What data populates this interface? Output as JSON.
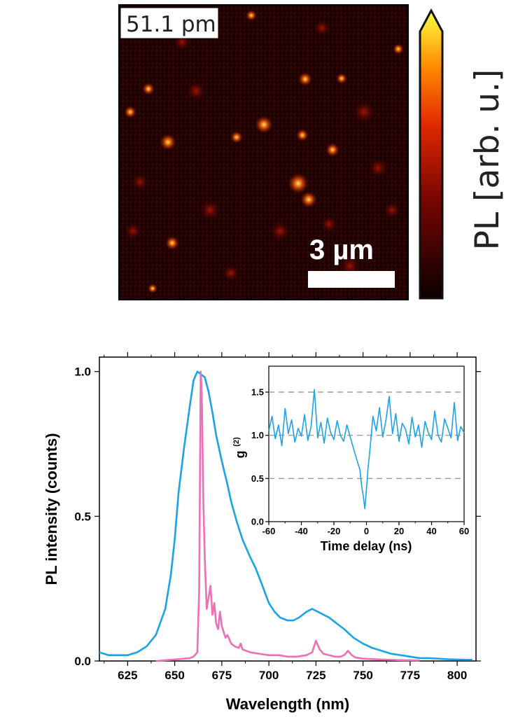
{
  "map": {
    "label": "51.1 pm",
    "scale_bar_label": "3 µm",
    "colorbar_label": "PL [arb. u.]",
    "colors": {
      "low": "#1a0000",
      "mid": "#cc2200",
      "high": "#ffff33"
    }
  },
  "chart_data": [
    {
      "type": "line",
      "xlabel": "Wavelength (nm)",
      "ylabel": "PL intensity (counts)",
      "xlim": [
        610,
        810
      ],
      "ylim": [
        0,
        1.05
      ],
      "xticks": [
        625,
        650,
        675,
        700,
        725,
        750,
        775,
        800
      ],
      "yticks": [
        0.0,
        0.5,
        1.0
      ],
      "ytick_labels": [
        "0.0",
        "0.5",
        "1.0"
      ],
      "grid": false,
      "series": [
        {
          "color": "#1aa3e8",
          "x": [
            610,
            615,
            620,
            625,
            630,
            635,
            640,
            645,
            648,
            650,
            652,
            655,
            658,
            660,
            662,
            664,
            666,
            668,
            670,
            672,
            675,
            678,
            680,
            683,
            686,
            690,
            693,
            696,
            700,
            703,
            706,
            710,
            713,
            716,
            720,
            723,
            726,
            729,
            732,
            736,
            740,
            745,
            750,
            755,
            760,
            765,
            770,
            775,
            780,
            785,
            790,
            795,
            800,
            805,
            808
          ],
          "y": [
            0.03,
            0.02,
            0.02,
            0.02,
            0.03,
            0.05,
            0.09,
            0.18,
            0.3,
            0.42,
            0.58,
            0.74,
            0.88,
            0.97,
            1.0,
            0.99,
            0.98,
            0.93,
            0.86,
            0.78,
            0.69,
            0.61,
            0.55,
            0.48,
            0.42,
            0.36,
            0.32,
            0.27,
            0.2,
            0.17,
            0.15,
            0.14,
            0.14,
            0.15,
            0.17,
            0.18,
            0.17,
            0.16,
            0.15,
            0.13,
            0.11,
            0.08,
            0.06,
            0.045,
            0.035,
            0.025,
            0.02,
            0.015,
            0.01,
            0.01,
            0.008,
            0.006,
            0.005,
            0.004,
            0.004
          ]
        },
        {
          "color": "#f06eb4",
          "x": [
            640,
            650,
            655,
            658,
            660,
            662,
            663,
            663.8,
            664.4,
            665.2,
            666,
            667,
            668,
            669,
            670,
            671,
            672,
            673,
            674,
            675,
            676,
            677,
            678,
            680,
            682,
            684,
            685,
            686,
            688,
            690,
            695,
            700,
            705,
            710,
            715,
            720,
            723,
            725,
            727,
            729,
            732,
            735,
            738,
            740,
            742,
            744,
            746,
            750,
            760,
            770,
            780
          ],
          "y": [
            0.0,
            0.005,
            0.008,
            0.01,
            0.015,
            0.03,
            0.25,
            1.0,
            0.92,
            0.55,
            0.35,
            0.18,
            0.22,
            0.26,
            0.16,
            0.2,
            0.13,
            0.11,
            0.17,
            0.12,
            0.1,
            0.08,
            0.09,
            0.06,
            0.05,
            0.045,
            0.06,
            0.04,
            0.035,
            0.03,
            0.025,
            0.02,
            0.02,
            0.015,
            0.015,
            0.02,
            0.03,
            0.07,
            0.04,
            0.025,
            0.02,
            0.015,
            0.015,
            0.02,
            0.035,
            0.02,
            0.012,
            0.008,
            0.005,
            0.003,
            0.002
          ]
        }
      ]
    },
    {
      "type": "line",
      "xlabel": "Time delay (ns)",
      "ylabel": "g",
      "ylabel_sup": "(2)",
      "xlim": [
        -60,
        60
      ],
      "ylim": [
        0,
        1.8
      ],
      "xticks": [
        -60,
        -40,
        -20,
        0,
        20,
        40,
        60
      ],
      "yticks": [
        0.0,
        0.5,
        1.0,
        1.5
      ],
      "ytick_labels": [
        "0.0",
        "0.5",
        "1.0",
        "1.5"
      ],
      "reference_lines": [
        0.5,
        1.0,
        1.5
      ],
      "series": [
        {
          "color": "#1aa3e8",
          "x": [
            -60,
            -58,
            -56,
            -54,
            -52,
            -50,
            -48,
            -46,
            -44,
            -42,
            -40,
            -38,
            -36,
            -34,
            -32,
            -30,
            -28,
            -26,
            -24,
            -22,
            -20,
            -18,
            -16,
            -14,
            -12,
            -10,
            -8,
            -6,
            -4,
            -3,
            -2,
            -1,
            0,
            1,
            2,
            4,
            6,
            8,
            10,
            12,
            14,
            16,
            18,
            20,
            22,
            24,
            26,
            28,
            30,
            32,
            34,
            36,
            38,
            40,
            42,
            44,
            46,
            48,
            50,
            52,
            54,
            56,
            58,
            60
          ],
          "y": [
            1.05,
            1.22,
            0.96,
            1.12,
            0.88,
            1.31,
            1.02,
            1.18,
            0.92,
            1.08,
            0.99,
            1.24,
            0.94,
            1.1,
            1.53,
            0.97,
            1.15,
            0.91,
            1.2,
            1.03,
            0.95,
            1.17,
            1.0,
            0.93,
            1.12,
            0.98,
            0.85,
            0.72,
            0.6,
            0.42,
            0.3,
            0.15,
            0.38,
            0.62,
            0.8,
            1.22,
            1.05,
            1.32,
            0.98,
            1.18,
            1.45,
            1.02,
            1.25,
            0.93,
            1.14,
            1.07,
            0.9,
            1.21,
            0.98,
            1.12,
            0.86,
            1.16,
            1.03,
            0.95,
            1.28,
            1.0,
            0.92,
            1.19,
            1.08,
            0.97,
            1.38,
            0.94,
            1.1,
            1.03
          ]
        }
      ]
    }
  ]
}
